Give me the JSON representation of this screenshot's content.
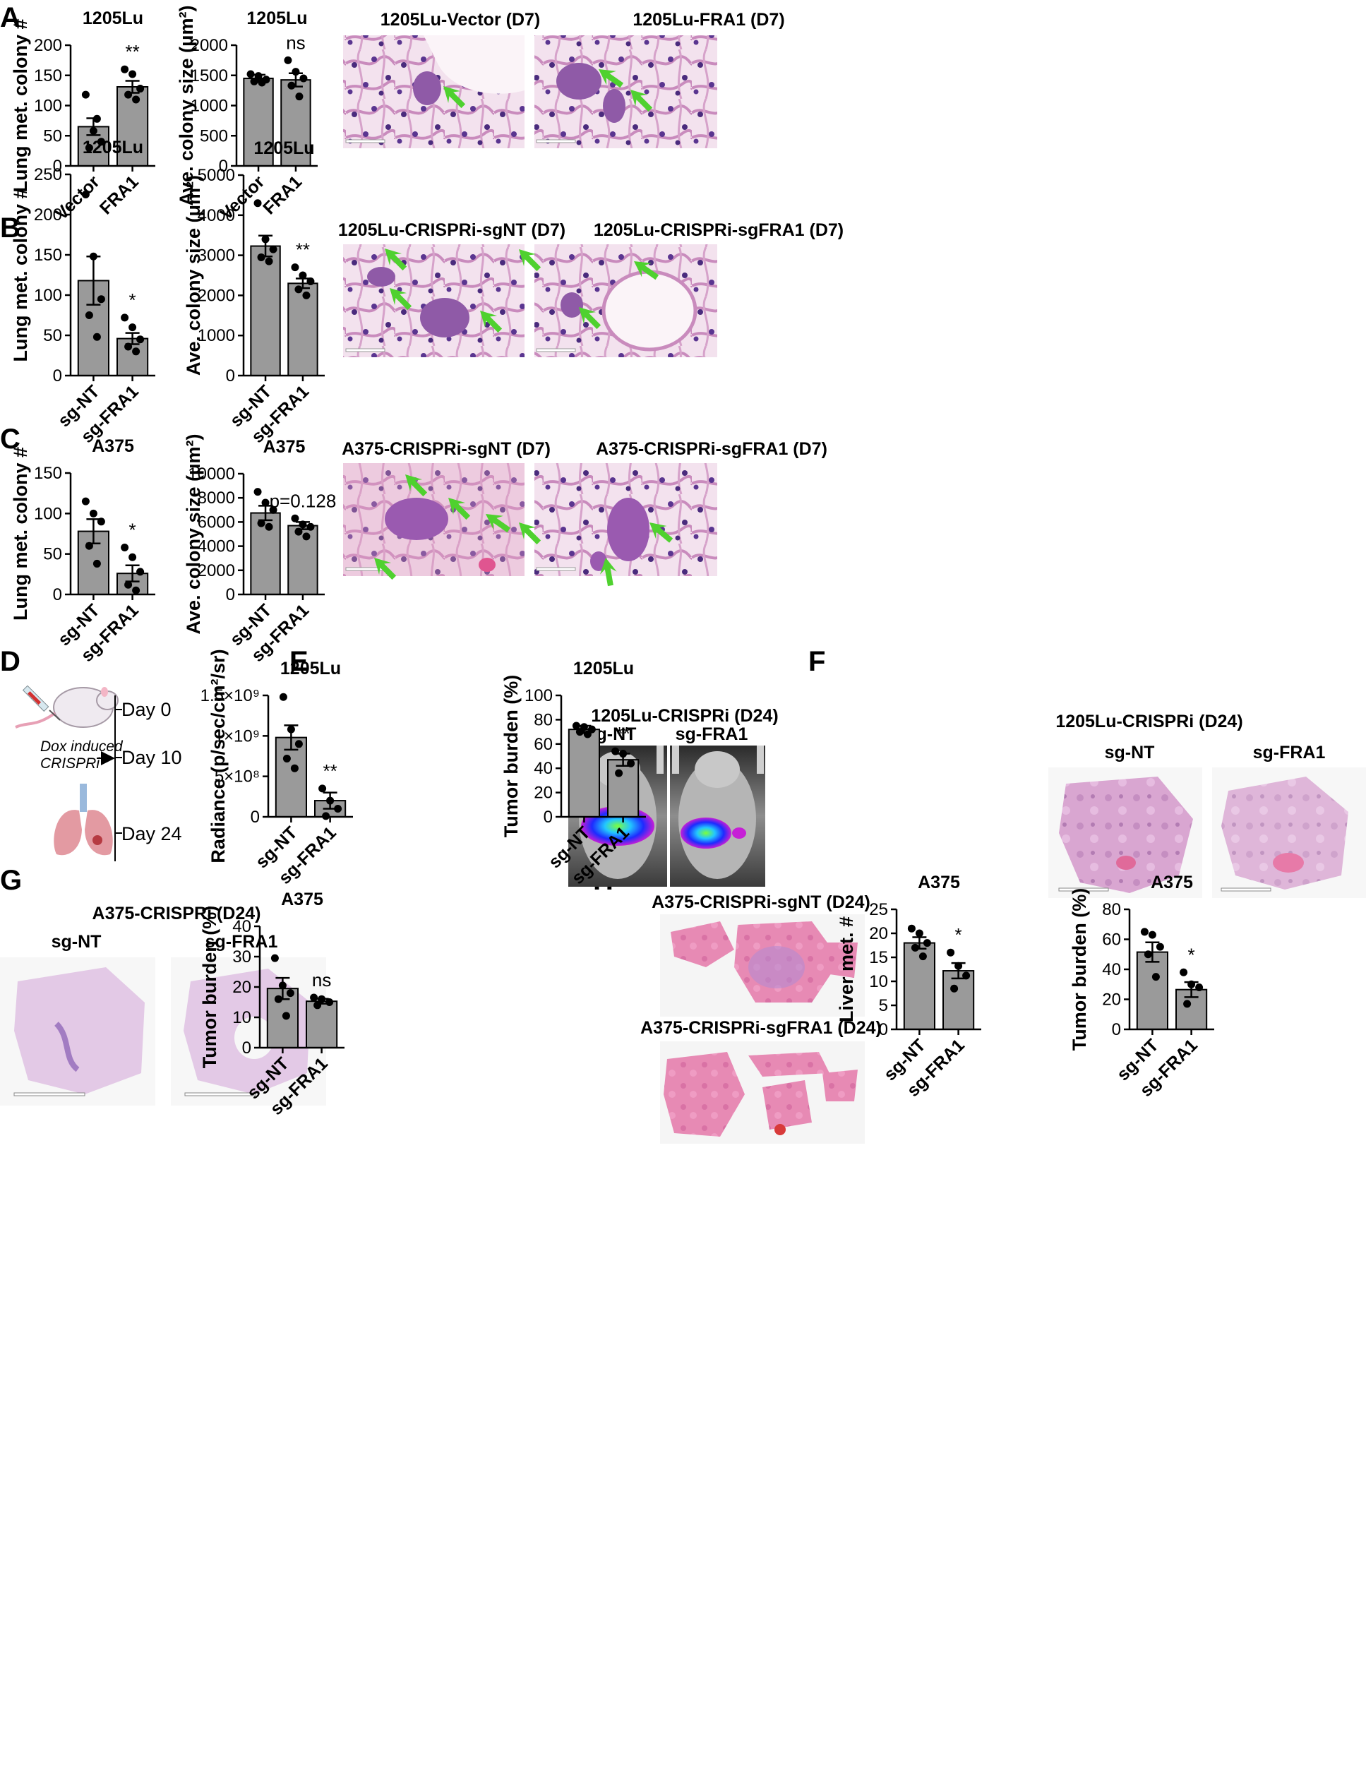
{
  "panel_labels": {
    "A": "A",
    "B": "B",
    "C": "C",
    "D": "D",
    "E": "E",
    "F": "F",
    "G": "G",
    "H": "H"
  },
  "image_titles": {
    "A_left": "1205Lu-Vector (D7)",
    "A_right": "1205Lu-FRA1 (D7)",
    "B_left": "1205Lu-CRISPRi-sgNT (D7)",
    "B_right": "1205Lu-CRISPRi-sgFRA1 (D7)",
    "C_left": "A375-CRISPRi-sgNT (D7)",
    "C_right": "A375-CRISPRi-sgFRA1 (D7)",
    "E": "1205Lu-CRISPRi (D24)",
    "E_sub1": "sg-NT",
    "E_sub2": "sg-FRA1",
    "F": "1205Lu-CRISPRi (D24)",
    "F_sub1": "sg-NT",
    "F_sub2": "sg-FRA1",
    "G": "A375-CRISPRi (D24)",
    "G_sub1": "sg-NT",
    "G_sub2": "sg-FRA1",
    "H_top": "A375-CRISPRi-sgNT (D24)",
    "H_bottom": "A375-CRISPRi-sgFRA1 (D24)"
  },
  "timeline": {
    "day0": "Day 0",
    "day10": "Day 10",
    "day24": "Day 24",
    "note_line1": "Dox induced",
    "note_line2": "CRISPRi"
  },
  "colors": {
    "bar": "#9a9a9a",
    "arrow": "#4fd12f",
    "he_bg": "#f1dcea",
    "he_tissue": "#cf9ec6",
    "nucleus": "#4a2b7d"
  },
  "chart_data": [
    {
      "id": "A1",
      "type": "bar",
      "title": "1205Lu",
      "ylabel": "Lung met. colony #",
      "categories": [
        "Vector",
        "FRA1"
      ],
      "values": [
        65,
        131
      ],
      "errors": [
        14,
        10
      ],
      "ylim": [
        0,
        200
      ],
      "yticks": [
        "0",
        "50",
        "100",
        "150",
        "200"
      ],
      "significance": "**",
      "points": [
        [
          118,
          58,
          40,
          30,
          78
        ],
        [
          160,
          152,
          128,
          118,
          110
        ]
      ]
    },
    {
      "id": "A2",
      "type": "bar",
      "title": "1205Lu",
      "ylabel": "Ave. colony size (μm²)",
      "categories": [
        "Vector",
        "FRA1"
      ],
      "values": [
        1450,
        1425
      ],
      "errors": [
        60,
        110
      ],
      "ylim": [
        0,
        2000
      ],
      "yticks": [
        "0",
        "500",
        "1000",
        "1500",
        "2000"
      ],
      "significance": "ns",
      "points": [
        [
          1520,
          1490,
          1430,
          1400,
          1380
        ],
        [
          1750,
          1560,
          1450,
          1330,
          1150
        ]
      ]
    },
    {
      "id": "B1",
      "type": "bar",
      "title": "1205Lu",
      "ylabel": "Lung met. colony #",
      "categories": [
        "sg-NT",
        "sg-FRA1"
      ],
      "values": [
        118,
        46
      ],
      "errors": [
        30,
        7
      ],
      "ylim": [
        0,
        250
      ],
      "yticks": [
        "0",
        "50",
        "100",
        "150",
        "200",
        "250"
      ],
      "significance": "*",
      "points": [
        [
          225,
          148,
          95,
          75,
          48
        ],
        [
          72,
          60,
          45,
          36,
          30
        ]
      ]
    },
    {
      "id": "B2",
      "type": "bar",
      "title": "1205Lu",
      "ylabel": "Ave. colony size (μm²)",
      "categories": [
        "sg-NT",
        "sg-FRA1"
      ],
      "values": [
        3230,
        2300
      ],
      "errors": [
        260,
        120
      ],
      "ylim": [
        0,
        5000
      ],
      "yticks": [
        "0",
        "1000",
        "2000",
        "3000",
        "4000",
        "5000"
      ],
      "significance": "**",
      "points": [
        [
          4300,
          3400,
          3150,
          2950,
          2850
        ],
        [
          2700,
          2500,
          2350,
          2150,
          2000
        ]
      ]
    },
    {
      "id": "C1",
      "type": "bar",
      "title": "A375",
      "ylabel": "Lung met. colony #",
      "categories": [
        "sg-NT",
        "sg-FRA1"
      ],
      "values": [
        78,
        26
      ],
      "errors": [
        15,
        10
      ],
      "ylim": [
        0,
        150
      ],
      "yticks": [
        "0",
        "50",
        "100",
        "150"
      ],
      "significance": "*",
      "points": [
        [
          115,
          100,
          90,
          60,
          38
        ],
        [
          58,
          46,
          28,
          12,
          5
        ]
      ]
    },
    {
      "id": "C2",
      "type": "bar",
      "title": "A375",
      "ylabel": "Ave. colony size (μm²)",
      "categories": [
        "sg-NT",
        "sg-FRA1"
      ],
      "values": [
        6750,
        5700
      ],
      "errors": [
        600,
        300
      ],
      "ylim": [
        0,
        10000
      ],
      "yticks": [
        "0",
        "2000",
        "4000",
        "6000",
        "8000",
        "10000"
      ],
      "significance": "p=0.128",
      "points": [
        [
          8500,
          7600,
          7000,
          5900,
          5600
        ],
        [
          6300,
          5800,
          5600,
          5200,
          4800
        ]
      ]
    },
    {
      "id": "E1",
      "type": "bar",
      "title": "1205Lu",
      "ylabel": "Radiance (p/sec/cm²/sr)",
      "categories": [
        "sg-NT",
        "sg-FRA1"
      ],
      "values": [
        980000000,
        200000000
      ],
      "errors": [
        150000000,
        100000000
      ],
      "ylim": [
        0,
        1500000000
      ],
      "yticks": [
        "0",
        "5×10⁸",
        "1×10⁹",
        "1.5×10⁹"
      ],
      "significance": "**",
      "points": [
        [
          1480000000,
          1080000000,
          900000000,
          720000000,
          600000000
        ],
        [
          350000000,
          200000000,
          100000000,
          10000000
        ]
      ]
    },
    {
      "id": "F1",
      "type": "bar",
      "title": "1205Lu",
      "ylabel": "Tumor burden (%)",
      "categories": [
        "sg-NT",
        "sg-FRA1"
      ],
      "values": [
        72,
        47
      ],
      "errors": [
        3,
        5
      ],
      "ylim": [
        0,
        100
      ],
      "yticks": [
        "0",
        "20",
        "40",
        "60",
        "80",
        "100"
      ],
      "significance": "**",
      "points": [
        [
          75,
          74,
          72,
          70,
          68
        ],
        [
          54,
          52,
          44,
          36
        ]
      ]
    },
    {
      "id": "G1",
      "type": "bar",
      "title": "A375",
      "ylabel": "Tumor burden (%)",
      "categories": [
        "sg-NT",
        "sg-FRA1"
      ],
      "values": [
        19.5,
        15.3
      ],
      "errors": [
        3.5,
        0.8
      ],
      "ylim": [
        0,
        40
      ],
      "yticks": [
        "0",
        "10",
        "20",
        "30",
        "40"
      ],
      "significance": "ns",
      "points": [
        [
          29.5,
          20.5,
          18,
          16,
          10.5
        ],
        [
          16.5,
          16,
          15,
          14
        ]
      ]
    },
    {
      "id": "H1",
      "type": "bar",
      "title": "A375",
      "ylabel": "Liver met. #",
      "categories": [
        "sg-NT",
        "sg-FRA1"
      ],
      "values": [
        18,
        12.2
      ],
      "errors": [
        1.2,
        1.6
      ],
      "ylim": [
        0,
        25
      ],
      "yticks": [
        "0",
        "5",
        "10",
        "15",
        "20",
        "25"
      ],
      "significance": "*",
      "points": [
        [
          21,
          20,
          18,
          17,
          15.2
        ],
        [
          16,
          13.2,
          11.2,
          8.5
        ]
      ]
    },
    {
      "id": "H2",
      "type": "bar",
      "title": "A375",
      "ylabel": "Tumor burden (%)",
      "categories": [
        "sg-NT",
        "sg-FRA1"
      ],
      "values": [
        51.5,
        26.5
      ],
      "errors": [
        6.5,
        5
      ],
      "ylim": [
        0,
        80
      ],
      "yticks": [
        "0",
        "20",
        "40",
        "60",
        "80"
      ],
      "significance": "*",
      "points": [
        [
          65,
          63,
          55,
          50,
          35
        ],
        [
          38,
          30,
          28,
          17
        ]
      ]
    }
  ]
}
